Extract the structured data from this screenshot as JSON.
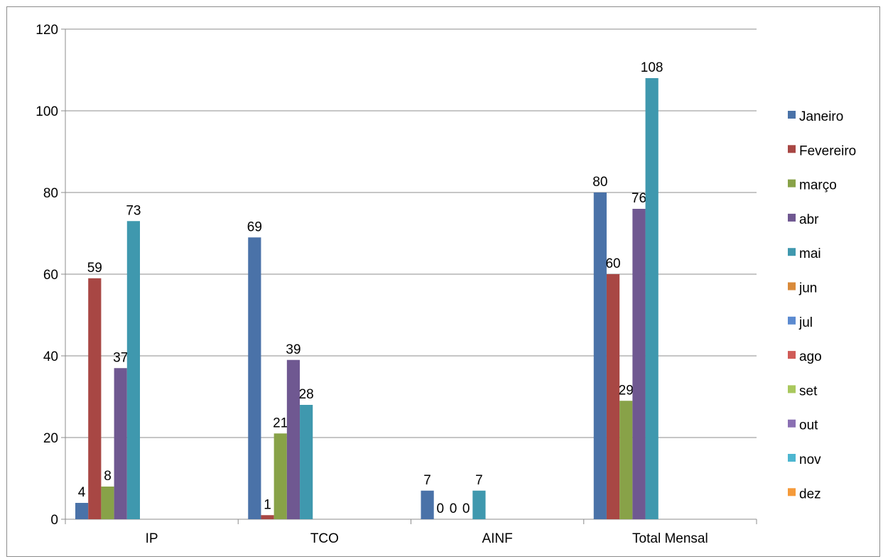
{
  "chart_data": {
    "type": "bar",
    "categories": [
      "IP",
      "TCO",
      "AINF",
      "Total Mensal"
    ],
    "ylim": [
      0,
      120
    ],
    "yticks": [
      0,
      20,
      40,
      60,
      80,
      100,
      120
    ],
    "grid": true,
    "legend_position": "right",
    "series": [
      {
        "name": "Janeiro",
        "color": "#4a72a8",
        "values": [
          4,
          69,
          7,
          80
        ],
        "labels": [
          "4",
          "69",
          "7",
          "80"
        ]
      },
      {
        "name": "Fevereiro",
        "color": "#a84744",
        "values": [
          59,
          1,
          0,
          60
        ],
        "labels": [
          "59",
          "1",
          "0",
          "60"
        ]
      },
      {
        "name": "março",
        "color": "#88a248",
        "values": [
          8,
          21,
          0,
          29
        ],
        "labels": [
          "8",
          "21",
          "0",
          "29"
        ]
      },
      {
        "name": "abr",
        "color": "#6f5891",
        "values": [
          37,
          39,
          0,
          76
        ],
        "labels": [
          "37",
          "39",
          "0",
          "76"
        ]
      },
      {
        "name": "mai",
        "color": "#3f98ae",
        "values": [
          73,
          28,
          7,
          108
        ],
        "labels": [
          "73",
          "28",
          "7",
          "108"
        ]
      },
      {
        "name": "jun",
        "color": "#d98a3a",
        "values": [
          null,
          null,
          null,
          null
        ],
        "labels": [
          null,
          null,
          null,
          null
        ]
      },
      {
        "name": "jul",
        "color": "#5b8ad0",
        "values": [
          null,
          null,
          null,
          null
        ],
        "labels": [
          null,
          null,
          null,
          null
        ]
      },
      {
        "name": "ago",
        "color": "#d05b57",
        "values": [
          null,
          null,
          null,
          null
        ],
        "labels": [
          null,
          null,
          null,
          null
        ]
      },
      {
        "name": "set",
        "color": "#a9c85d",
        "values": [
          null,
          null,
          null,
          null
        ],
        "labels": [
          null,
          null,
          null,
          null
        ]
      },
      {
        "name": "out",
        "color": "#8a6fb3",
        "values": [
          null,
          null,
          null,
          null
        ],
        "labels": [
          null,
          null,
          null,
          null
        ]
      },
      {
        "name": "nov",
        "color": "#4db6d0",
        "values": [
          null,
          null,
          null,
          null
        ],
        "labels": [
          null,
          null,
          null,
          null
        ]
      },
      {
        "name": "dez",
        "color": "#f59a3a",
        "values": [
          null,
          null,
          null,
          null
        ],
        "labels": [
          null,
          null,
          null,
          null
        ]
      }
    ]
  }
}
